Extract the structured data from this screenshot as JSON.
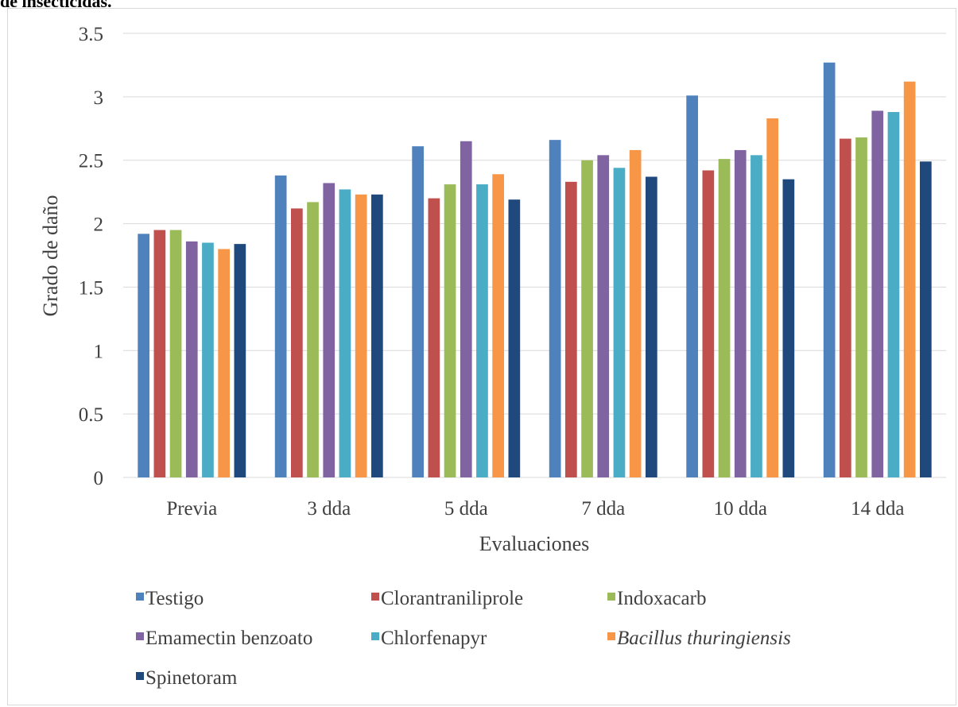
{
  "caption": "de insecticidas.",
  "chart_data": {
    "type": "bar",
    "categories": [
      "Previa",
      "3 dda",
      "5 dda",
      "7 dda",
      "10 dda",
      "14 dda"
    ],
    "series": [
      {
        "name": "Testigo",
        "color": "#4f81bd",
        "italic": false,
        "values": [
          1.92,
          2.38,
          2.61,
          2.66,
          3.01,
          3.27
        ]
      },
      {
        "name": "Clorantraniliprole",
        "color": "#c0504d",
        "italic": false,
        "values": [
          1.95,
          2.12,
          2.2,
          2.33,
          2.42,
          2.67
        ]
      },
      {
        "name": "Indoxacarb",
        "color": "#9bbb59",
        "italic": false,
        "values": [
          1.95,
          2.17,
          2.31,
          2.5,
          2.51,
          2.68
        ]
      },
      {
        "name": "Emamectin benzoato",
        "color": "#8064a2",
        "italic": false,
        "values": [
          1.86,
          2.32,
          2.65,
          2.54,
          2.58,
          2.89
        ]
      },
      {
        "name": "Chlorfenapyr",
        "color": "#4bacc6",
        "italic": false,
        "values": [
          1.85,
          2.27,
          2.31,
          2.44,
          2.54,
          2.88
        ]
      },
      {
        "name": "Bacillus thuringiensis",
        "color": "#f79646",
        "italic": true,
        "values": [
          1.8,
          2.23,
          2.39,
          2.58,
          2.83,
          3.12
        ]
      },
      {
        "name": "Spinetoram",
        "color": "#1f497d",
        "italic": false,
        "values": [
          1.84,
          2.23,
          2.19,
          2.37,
          2.35,
          2.49
        ]
      }
    ],
    "xlabel": "Evaluaciones",
    "ylabel": "Grado de daño",
    "ylim": [
      0,
      3.5
    ],
    "yticks": [
      "0",
      "0.5",
      "1",
      "1.5",
      "2",
      "2.5",
      "3",
      "3.5"
    ],
    "grid": true,
    "legend_position": "bottom"
  }
}
